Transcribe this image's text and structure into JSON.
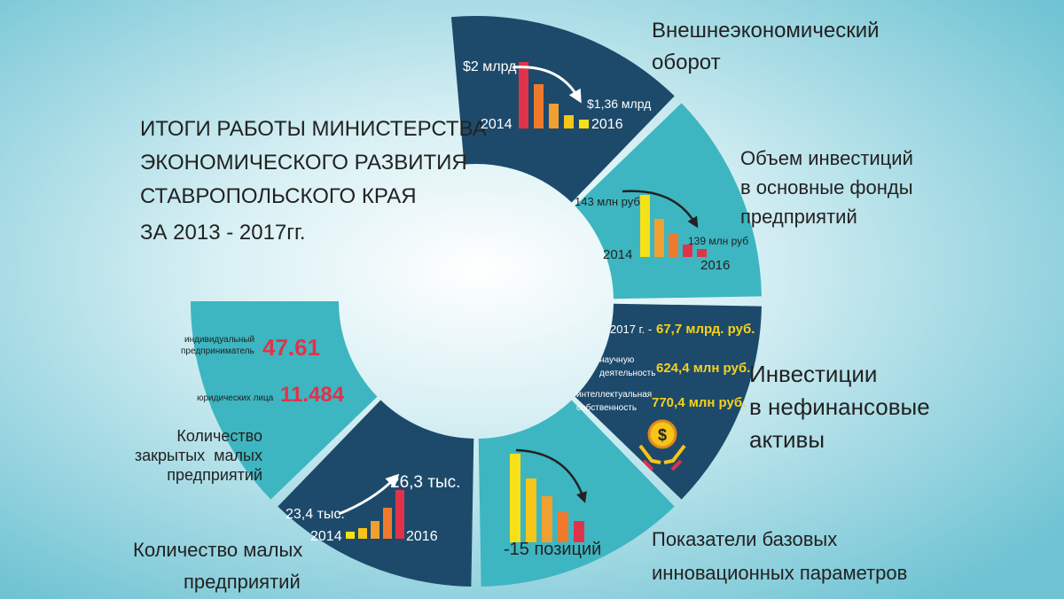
{
  "title": [
    "ИТОГИ РАБОТЫ МИНИСТЕРСТВА",
    "ЭКОНОМИЧЕСКОГО РАЗВИТИЯ",
    "СТАВРОПОЛЬСКОГО КРАЯ",
    "ЗА 2013 - 2017гг."
  ],
  "sections": [
    {
      "label": [
        "Внешнеэкономический",
        "оборот"
      ],
      "start": "$2 млрд",
      "end": "$1,36 млрд",
      "start_year": "2014",
      "end_year": "2016"
    },
    {
      "label": [
        "Объем инвестиций",
        "в основные фонды",
        "предприятий"
      ],
      "start": "143 млн руб",
      "end": "139 млн руб",
      "start_year": "2014",
      "end_year": "2016"
    },
    {
      "label": [
        "Инвестиции",
        "в нефинансовые",
        "активы"
      ],
      "items": [
        {
          "label": [
            "2017 г. -"
          ],
          "value": "67,7 млрд. руб."
        },
        {
          "label": [
            "научную",
            "деятельность"
          ],
          "value": "624,4 млн руб."
        },
        {
          "label": [
            "интеллектуальная",
            "собственность"
          ],
          "value": "770,4 млн руб."
        }
      ]
    },
    {
      "label": [
        "Показатели базовых",
        "инновационных параметров"
      ],
      "change": "-15 позиций"
    },
    {
      "label": [
        "Количество малых",
        "предприятий"
      ],
      "start": "23,4 тыс.",
      "end": "26,3 тыс.",
      "start_year": "2014",
      "end_year": "2016"
    },
    {
      "label": [
        "Количество",
        "закрытых  малых",
        "предприятий"
      ],
      "items": [
        {
          "label": [
            "индивидуальный",
            "предприниматель"
          ],
          "value": "47.61"
        },
        {
          "label": [
            "юридических лица"
          ],
          "value": "11.484"
        }
      ]
    }
  ]
}
